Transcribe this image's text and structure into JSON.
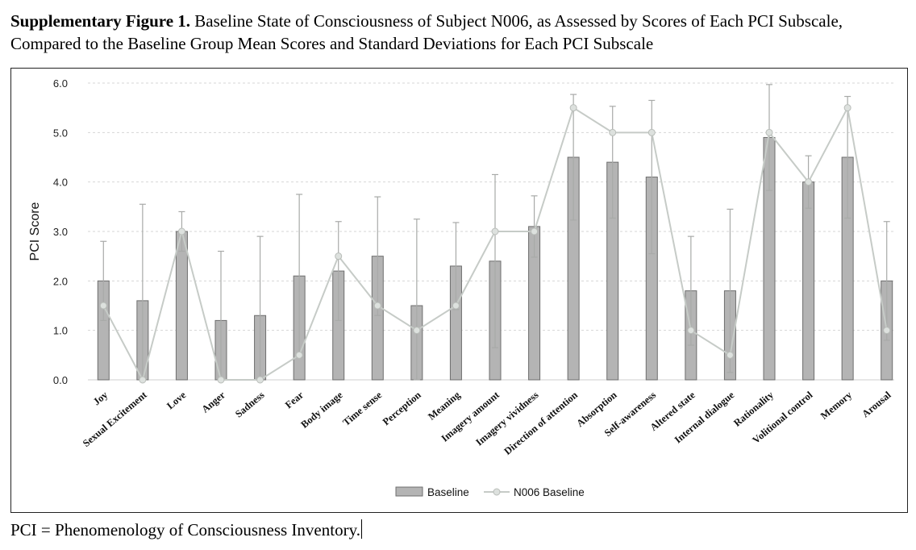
{
  "caption": {
    "label": "Supplementary Figure 1.",
    "text": " Baseline State of Consciousness of Subject N006, as Assessed by Scores of Each PCI Subscale, Compared to the Baseline Group Mean Scores and Standard Deviations for Each PCI Subscale"
  },
  "footnote": "PCI = Phenomenology of Consciousness Inventory.",
  "colors": {
    "bar_fill": "#b4b4b4",
    "bar_stroke": "#6e6e6e",
    "line": "#c6cbc7",
    "marker": "#dde1de",
    "errorbar": "#a8aaa8",
    "grid": "#d6d6d6"
  },
  "chart_data": {
    "type": "bar",
    "title": "",
    "xlabel": "",
    "ylabel": "PCI Score",
    "ylim": [
      0,
      6
    ],
    "yticks": [
      "0.0",
      "1.0",
      "2.0",
      "3.0",
      "4.0",
      "5.0",
      "6.0"
    ],
    "grid": "horizontal dashed",
    "legend_position": "bottom-center",
    "categories": [
      "Joy",
      "Sexual Excitement",
      "Love",
      "Anger",
      "Sadness",
      "Fear",
      "Body image",
      "Time sense",
      "Perception",
      "Meaning",
      "Imagery amount",
      "Imagery vividness",
      "Direction of attention",
      "Absorption",
      "Self-awareness",
      "Altered state",
      "Internal dialogue",
      "Rationality",
      "Volitional control",
      "Memory",
      "Arousal"
    ],
    "series": [
      {
        "name": "Baseline",
        "kind": "bar",
        "values": [
          2.0,
          1.6,
          3.0,
          1.2,
          1.3,
          2.1,
          2.2,
          2.5,
          1.5,
          2.3,
          2.4,
          3.1,
          4.5,
          4.4,
          4.1,
          1.8,
          1.8,
          4.9,
          4.0,
          4.5,
          2.0
        ],
        "sd": [
          0.8,
          1.95,
          0.4,
          1.4,
          1.6,
          1.65,
          1.0,
          1.2,
          1.75,
          0.88,
          1.75,
          0.62,
          1.27,
          1.13,
          1.55,
          1.1,
          1.65,
          1.07,
          0.53,
          1.23,
          1.2
        ]
      },
      {
        "name": "N006 Baseline",
        "kind": "line",
        "values": [
          1.5,
          0.0,
          3.0,
          0.0,
          0.0,
          0.5,
          2.5,
          1.5,
          1.0,
          1.5,
          3.0,
          3.0,
          5.5,
          5.0,
          5.0,
          1.0,
          0.5,
          5.0,
          4.0,
          5.5,
          1.0
        ]
      }
    ]
  }
}
